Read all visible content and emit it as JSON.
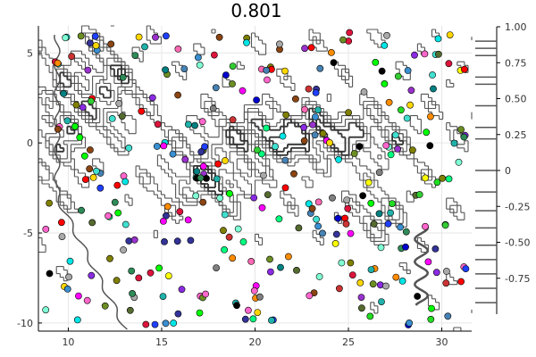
{
  "chart_data": {
    "type": "contour",
    "title": "0.801",
    "xlabel": "",
    "ylabel": "",
    "xlim": [
      8.4,
      31.6
    ],
    "ylim": [
      -10.45,
      6.5
    ],
    "xticks": [
      10,
      15,
      20,
      25,
      30
    ],
    "xtick_labels": [
      "10",
      "15",
      "20",
      "25",
      "30"
    ],
    "yticks": [
      -10,
      -5,
      0,
      5
    ],
    "ytick_labels": [
      "-10",
      "-5",
      "0",
      "5"
    ],
    "colorbar": {
      "range": [
        -1.0,
        1.0
      ],
      "ticks": [
        1.0,
        0.75,
        0.5,
        0.25,
        0.0,
        -0.25,
        -0.5,
        -0.75
      ],
      "tick_labels": [
        "1.00",
        "0.75",
        "0.50",
        "0.25",
        "0",
        "-0.25",
        "-0.50",
        "-0.75"
      ],
      "contour_levels": [
        0.9,
        0.85,
        0.8,
        0.65,
        0.6,
        0.45,
        0.3,
        0.22,
        0.0,
        -0.15,
        -0.28,
        -0.4,
        -0.52,
        -0.62,
        -0.72,
        -0.82,
        -0.92
      ]
    },
    "grid": true,
    "legend": "none",
    "colors": {
      "contour": "#555555",
      "contour_dark": "#333333",
      "marker_edge": "#000000",
      "grid": "#e6e6e6",
      "axis": "#000000"
    },
    "point_count": 330,
    "point_palette": [
      "#00ff00",
      "#22dd22",
      "#0000cc",
      "#1f3fff",
      "#4682b4",
      "#3a8fd0",
      "#00e5e5",
      "#40e0d0",
      "#ff00ff",
      "#ff66cc",
      "#ff69b4",
      "#8a2be2",
      "#9932cc",
      "#dc143c",
      "#ff0000",
      "#cc3333",
      "#ffd700",
      "#ffff00",
      "#808000",
      "#6b8e23",
      "#556b2f",
      "#2e8b57",
      "#008080",
      "#808080",
      "#a9a9a9",
      "#000000",
      "#333399",
      "#8b4513",
      "#ff8c00",
      "#7fffd4",
      "#00ff7f",
      "#32cd32",
      "#20b2aa"
    ]
  }
}
